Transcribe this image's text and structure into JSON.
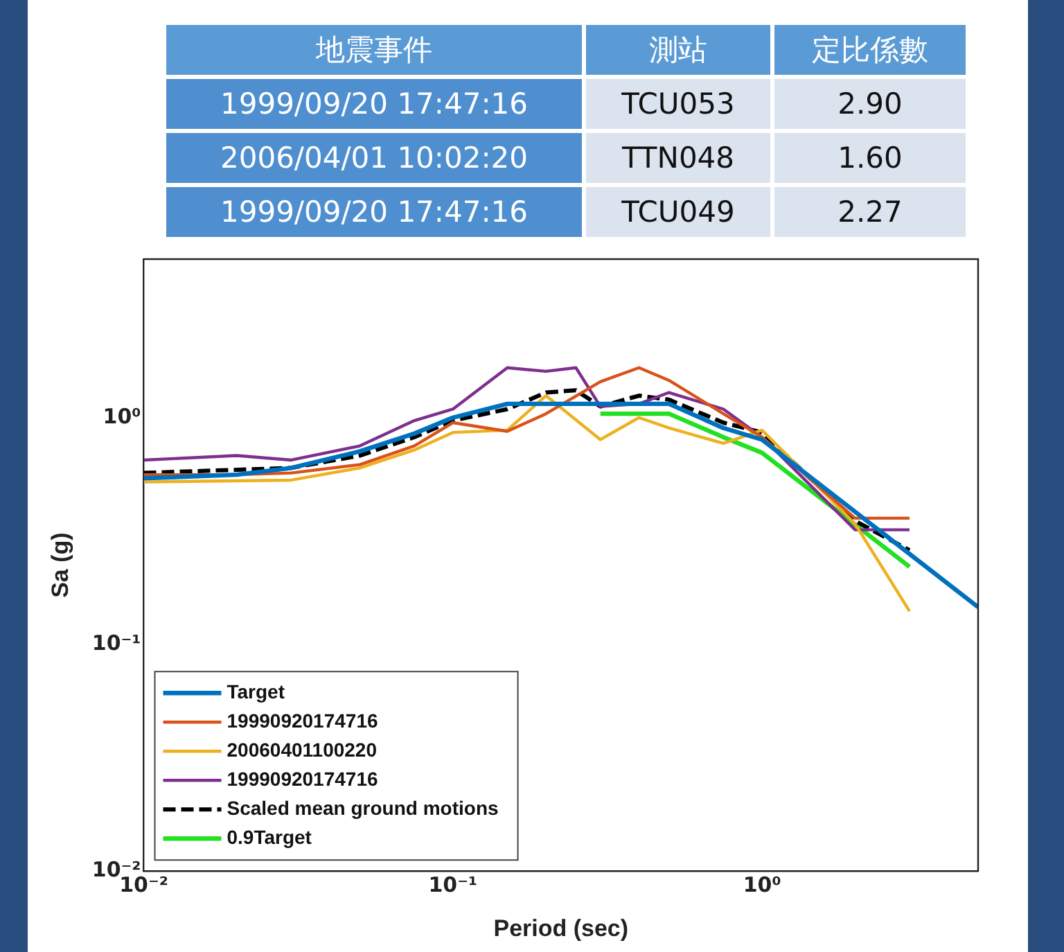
{
  "chart_data": [
    {
      "type": "other",
      "annotations": [
        "地震事件",
        "測站",
        "定比係數",
        "1999/09/20 17:47:16",
        "TCU053",
        "2.90",
        "2006/04/01 10:02:20",
        "TTN048",
        "1.60",
        "1999/09/20 17:47:16",
        "TCU049",
        "2.27"
      ]
    },
    {
      "type": "line",
      "xlabel": "Period (sec)",
      "ylabel": "Sa (g)",
      "log": "xy",
      "grid": false,
      "legend": "bottom left",
      "marker": "none",
      "xlim": [
        0.01,
        5
      ],
      "ylim": [
        0.01,
        5
      ],
      "xticks": [
        {
          "value": 0.01,
          "label": "10⁻²"
        },
        {
          "value": 0.1,
          "label": "10⁻¹"
        },
        {
          "value": 1,
          "label": "10⁰"
        }
      ],
      "yticks": [
        {
          "value": 0.01,
          "label": "10⁻²"
        },
        {
          "value": 0.1,
          "label": "10⁻¹"
        },
        {
          "value": 1,
          "label": "10⁰"
        }
      ],
      "series": [
        {
          "name": "Target",
          "color": "#0072bd",
          "x": [
            0.01,
            0.02,
            0.03,
            0.05,
            0.075,
            0.1,
            0.15,
            0.5,
            0.75,
            1,
            5
          ],
          "values": [
            0.54,
            0.56,
            0.6,
            0.71,
            0.85,
            1.0,
            1.15,
            1.15,
            0.9,
            0.8,
            0.146
          ]
        },
        {
          "name": "19990920174716",
          "color": "#d95319",
          "x": [
            0.01,
            0.02,
            0.03,
            0.05,
            0.075,
            0.1,
            0.15,
            0.2,
            0.3,
            0.4,
            0.5,
            0.75,
            1,
            2,
            3
          ],
          "values": [
            0.56,
            0.56,
            0.57,
            0.62,
            0.75,
            0.95,
            0.87,
            1.04,
            1.44,
            1.66,
            1.46,
            1.04,
            0.82,
            0.36,
            0.36
          ]
        },
        {
          "name": "20060401100220",
          "color": "#edb120",
          "x": [
            0.01,
            0.03,
            0.05,
            0.075,
            0.1,
            0.15,
            0.2,
            0.3,
            0.4,
            0.5,
            0.75,
            1,
            2,
            3
          ],
          "values": [
            0.52,
            0.53,
            0.6,
            0.72,
            0.86,
            0.88,
            1.25,
            0.8,
            1.0,
            0.9,
            0.77,
            0.88,
            0.34,
            0.14
          ]
        },
        {
          "name": "19990920174716",
          "color": "#7e2f8e",
          "x": [
            0.01,
            0.02,
            0.03,
            0.05,
            0.075,
            0.1,
            0.15,
            0.2,
            0.25,
            0.3,
            0.4,
            0.5,
            0.75,
            1,
            2,
            3
          ],
          "values": [
            0.65,
            0.68,
            0.65,
            0.75,
            0.97,
            1.09,
            1.66,
            1.6,
            1.66,
            1.12,
            1.15,
            1.29,
            1.09,
            0.82,
            0.32,
            0.32
          ]
        },
        {
          "name": "Scaled mean ground motions",
          "color": "#000000",
          "line_style": "dashed",
          "x": [
            0.01,
            0.03,
            0.05,
            0.075,
            0.1,
            0.15,
            0.2,
            0.25,
            0.3,
            0.4,
            0.5,
            0.75,
            1,
            2,
            3
          ],
          "values": [
            0.57,
            0.6,
            0.68,
            0.82,
            0.97,
            1.09,
            1.29,
            1.32,
            1.12,
            1.25,
            1.2,
            0.95,
            0.86,
            0.35,
            0.26
          ]
        },
        {
          "name": "0.9Target",
          "color": "#22e022",
          "x": [
            0.3,
            0.5,
            0.75,
            1,
            3
          ],
          "values": [
            1.04,
            1.04,
            0.82,
            0.7,
            0.22
          ]
        }
      ]
    }
  ]
}
